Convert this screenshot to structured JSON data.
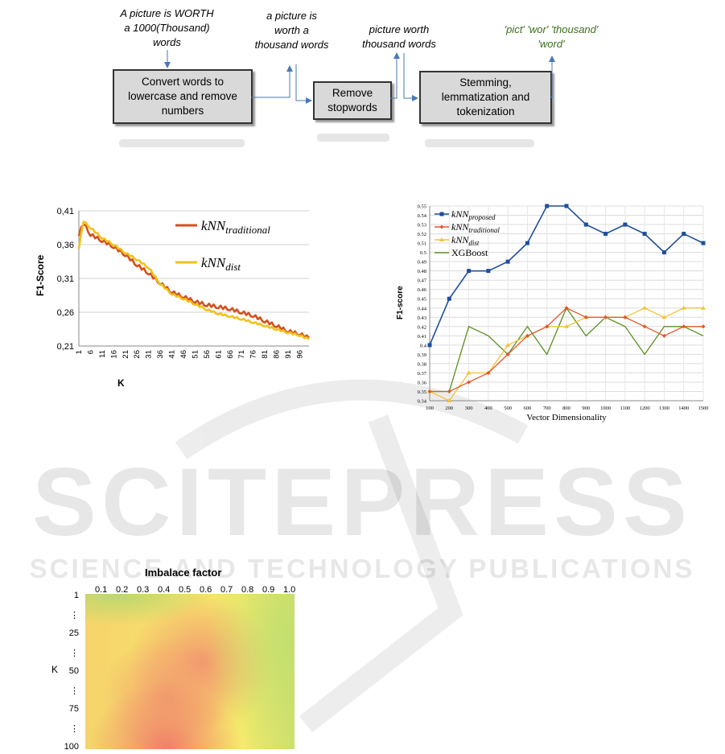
{
  "pipeline": {
    "input_text": [
      "A picture is WORTH",
      "a 1000(Thousand)",
      "words"
    ],
    "step1_label": [
      "Convert words to",
      "lowercase and remove",
      "numbers"
    ],
    "step1_output": [
      "a picture is",
      "worth a",
      "thousand words"
    ],
    "step2_label": [
      "Remove",
      "stopwords"
    ],
    "step2_output": [
      "picture worth",
      "thousand words"
    ],
    "step3_label": [
      "Stemming,",
      "lemmatization and",
      "tokenization"
    ],
    "step3_output": [
      "'pict' 'wor' 'thousand'",
      "'word'"
    ],
    "output_color": "#3a6e1e"
  },
  "watermark": {
    "brand": "SCITEPRESS",
    "tagline": "SCIENCE AND TECHNOLOGY PUBLICATIONS"
  },
  "chart_data": [
    {
      "type": "line",
      "ylabel": "F1-Score",
      "xlabel": "K",
      "ylim": [
        0.21,
        0.41
      ],
      "yticks": [
        "0,21",
        "0,26",
        "0,31",
        "0,36",
        "0,41"
      ],
      "xticks": [
        "1",
        "6",
        "11",
        "16",
        "21",
        "26",
        "31",
        "36",
        "41",
        "46",
        "51",
        "56",
        "61",
        "66",
        "71",
        "76",
        "81",
        "86",
        "91",
        "96"
      ],
      "grid": true,
      "legend_position": "top-right",
      "series": [
        {
          "name": "kNN",
          "sub": "traditional",
          "color": "#d2521e",
          "x": [
            1,
            3,
            6,
            11,
            16,
            21,
            26,
            31,
            36,
            41,
            46,
            51,
            56,
            61,
            66,
            71,
            76,
            81,
            86,
            91,
            96,
            100
          ],
          "values": [
            0.375,
            0.392,
            0.375,
            0.366,
            0.357,
            0.345,
            0.33,
            0.318,
            0.303,
            0.29,
            0.283,
            0.276,
            0.271,
            0.268,
            0.265,
            0.26,
            0.255,
            0.247,
            0.24,
            0.232,
            0.228,
            0.222
          ]
        },
        {
          "name": "kNN",
          "sub": "dist",
          "color": "#f2c11a",
          "x": [
            1,
            3,
            6,
            11,
            16,
            21,
            26,
            31,
            36,
            41,
            46,
            51,
            56,
            61,
            66,
            71,
            76,
            81,
            86,
            91,
            96,
            100
          ],
          "values": [
            0.355,
            0.395,
            0.385,
            0.37,
            0.36,
            0.348,
            0.338,
            0.326,
            0.302,
            0.287,
            0.28,
            0.272,
            0.264,
            0.258,
            0.254,
            0.25,
            0.245,
            0.24,
            0.235,
            0.23,
            0.226,
            0.22
          ]
        }
      ]
    },
    {
      "type": "line",
      "ylabel": "F1-score",
      "xlabel": "Vector Dimensionality",
      "ylim": [
        0.34,
        0.55
      ],
      "yticks": [
        "0.34",
        "0.35",
        "0.36",
        "0.37",
        "0.38",
        "0.39",
        "0.4",
        "0.41",
        "0.42",
        "0.43",
        "0.44",
        "0.45",
        "0.46",
        "0.47",
        "0.48",
        "0.49",
        "0.5",
        "0.51",
        "0.52",
        "0.53",
        "0.54",
        "0.55"
      ],
      "categories": [
        "100",
        "200",
        "300",
        "400",
        "500",
        "600",
        "700",
        "800",
        "900",
        "1000",
        "1100",
        "1200",
        "1300",
        "1400",
        "1500"
      ],
      "grid": true,
      "legend_position": "top-left",
      "series": [
        {
          "name": "kNN",
          "sub": "proposed",
          "color": "#1f4e9c",
          "marker": "square",
          "values": [
            0.4,
            0.45,
            0.48,
            0.48,
            0.49,
            0.51,
            0.55,
            0.55,
            0.53,
            0.52,
            0.53,
            0.52,
            0.5,
            0.52,
            0.51
          ]
        },
        {
          "name": "kNN",
          "sub": "traditional",
          "color": "#e0572a",
          "marker": "diamond",
          "values": [
            0.35,
            0.35,
            0.36,
            0.37,
            0.39,
            0.41,
            0.42,
            0.44,
            0.43,
            0.43,
            0.43,
            0.42,
            0.41,
            0.42,
            0.42
          ]
        },
        {
          "name": "kNN",
          "sub": "dist",
          "color": "#f2c43a",
          "marker": "triangle",
          "values": [
            0.35,
            0.34,
            0.37,
            0.37,
            0.4,
            0.41,
            0.42,
            0.42,
            0.43,
            0.43,
            0.43,
            0.44,
            0.43,
            0.44,
            0.44
          ]
        },
        {
          "name": "XGBoost",
          "sub": "",
          "color": "#5e8f22",
          "marker": "none",
          "values": [
            0.35,
            0.35,
            0.42,
            0.41,
            0.39,
            0.42,
            0.39,
            0.44,
            0.41,
            0.43,
            0.42,
            0.39,
            0.42,
            0.42,
            0.41
          ]
        }
      ]
    },
    {
      "type": "heatmap",
      "title": "Imbalace factor",
      "ylabel": "K",
      "xticks": [
        "0.1",
        "0.2",
        "0.3",
        "0.4",
        "0.5",
        "0.6",
        "0.7",
        "0.8",
        "0.9",
        "1.0"
      ],
      "yticks": [
        "1",
        "⋮",
        "25",
        "⋮",
        "50",
        "⋮",
        "75",
        "⋮",
        "100"
      ],
      "colors": [
        "#f18a6c",
        "#fbd56c",
        "#f8ec6e",
        "#b3d86e"
      ]
    }
  ]
}
